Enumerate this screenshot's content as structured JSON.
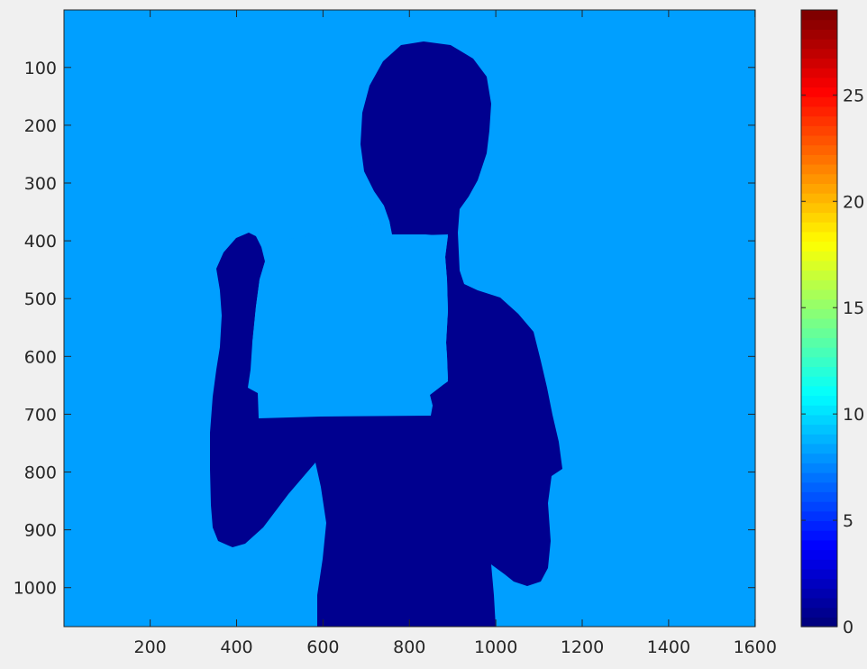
{
  "chart_data": {
    "type": "heatmap",
    "description_source": "image display with jet colormap",
    "x_ticks": [
      200,
      400,
      600,
      800,
      1000,
      1200,
      1400,
      1600
    ],
    "y_ticks": [
      100,
      200,
      300,
      400,
      500,
      600,
      700,
      800,
      900,
      1000
    ],
    "xlim": [
      0.5,
      1600.5
    ],
    "ylim": [
      0.5,
      1067.5
    ],
    "y_direction": "reverse",
    "colorbar": {
      "colormap": "jet",
      "clim": [
        0,
        29
      ],
      "ticks": [
        0,
        5,
        10,
        15,
        20,
        25
      ]
    },
    "levels": {
      "foreground_value": 0,
      "background_value": 7
    },
    "colors": {
      "foreground": "#00008f",
      "background": "#009fff",
      "figure_bg": "#f0f0f0"
    }
  }
}
